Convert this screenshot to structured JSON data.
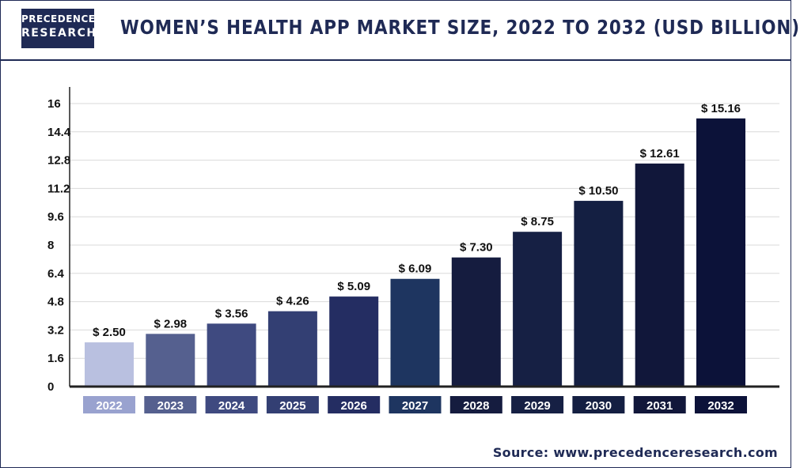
{
  "brand": {
    "logo_line1": "PRECEDENCE",
    "logo_line2": "RESEARCH"
  },
  "header": {
    "title": "WOMEN’S HEALTH APP MARKET SIZE, 2022 TO 2032 (USD BILLION)"
  },
  "footer": {
    "source": "Source: www.precedenceresearch.com"
  },
  "colors": {
    "brand_navy": "#1f2a55",
    "grid": "#d9d9d9",
    "axis": "#222222",
    "bar_colors": [
      "#b9c0e0",
      "#55608f",
      "#3f4a80",
      "#333f73",
      "#242d62",
      "#1e3560",
      "#151c3f",
      "#162044",
      "#141f42",
      "#11173a",
      "#0c1239"
    ],
    "label_box_colors": [
      "#99a2cf",
      "#55608f",
      "#3f4a80",
      "#333f73",
      "#242d62",
      "#1e3560",
      "#151c3f",
      "#162044",
      "#141f42",
      "#11173a",
      "#0c1239"
    ]
  },
  "chart_data": {
    "type": "bar",
    "title": "WOMEN’S HEALTH APP MARKET SIZE, 2022 TO 2032 (USD BILLION)",
    "categories": [
      "2022",
      "2023",
      "2024",
      "2025",
      "2026",
      "2027",
      "2028",
      "2029",
      "2030",
      "2031",
      "2032"
    ],
    "values": [
      2.5,
      2.98,
      3.56,
      4.26,
      5.09,
      6.09,
      7.3,
      8.75,
      10.5,
      12.61,
      15.16
    ],
    "data_labels": [
      "$ 2.50",
      "$ 2.98",
      "$ 3.56",
      "$ 4.26",
      "$ 5.09",
      "$ 6.09",
      "$ 7.30",
      "$ 8.75",
      "$ 10.50",
      "$ 12.61",
      "$ 15.16"
    ],
    "y_ticks": [
      "0",
      "1.6",
      "3.2",
      "4.8",
      "6.4",
      "8",
      "9.6",
      "11.2",
      "12.8",
      "14.4",
      "16"
    ],
    "ylim": [
      0,
      16
    ],
    "xlabel": "",
    "ylabel": "",
    "grid": true,
    "legend": "none"
  }
}
